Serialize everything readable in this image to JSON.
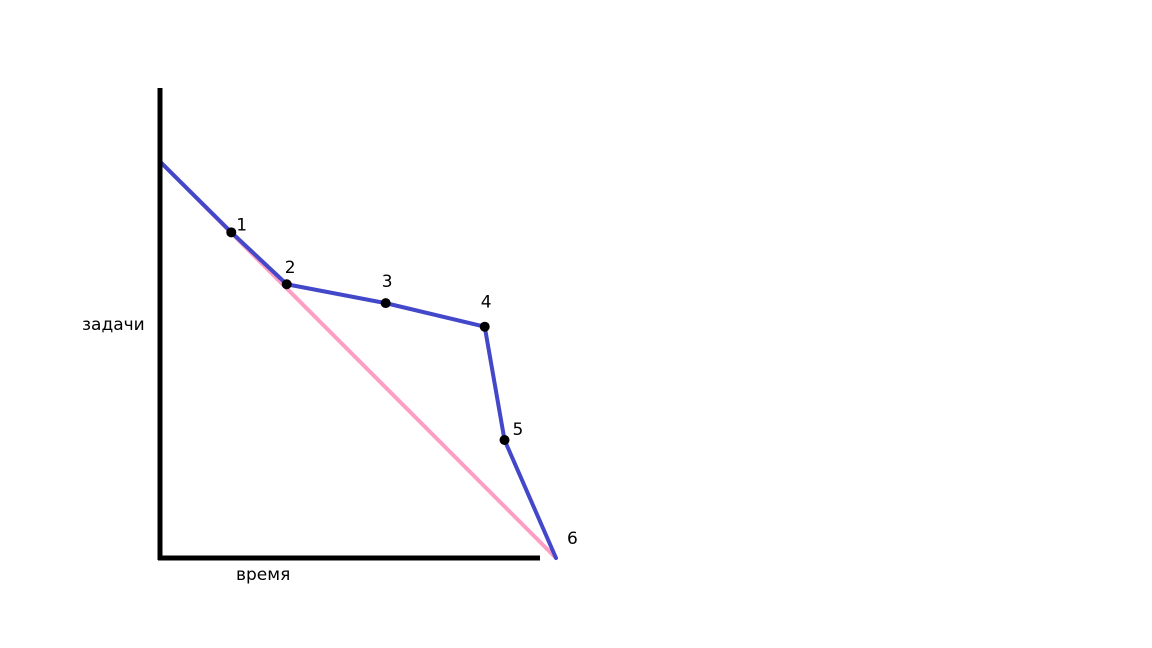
{
  "chart_data": {
    "type": "line",
    "title": "",
    "xlabel": "время",
    "ylabel": "задачи",
    "xlim": [
      0,
      1
    ],
    "ylim": [
      0,
      1
    ],
    "grid": false,
    "legend": "none",
    "series": [
      {
        "color": "#ff9ec4",
        "x": [
          0,
          1
        ],
        "y": [
          0.84,
          0
        ]
      },
      {
        "color": "#4347c9",
        "x": [
          0,
          0.18,
          0.32,
          0.57,
          0.82,
          0.87,
          1.0
        ],
        "y": [
          0.84,
          0.69,
          0.58,
          0.54,
          0.49,
          0.25,
          0
        ]
      }
    ],
    "points": [
      {
        "label": "1",
        "x": 0.18,
        "y": 0.69,
        "marker": true
      },
      {
        "label": "2",
        "x": 0.32,
        "y": 0.58,
        "marker": true
      },
      {
        "label": "3",
        "x": 0.57,
        "y": 0.54,
        "marker": true
      },
      {
        "label": "4",
        "x": 0.82,
        "y": 0.49,
        "marker": true
      },
      {
        "label": "5",
        "x": 0.87,
        "y": 0.25,
        "marker": true
      },
      {
        "label": "6",
        "x": 1.0,
        "y": 0.0,
        "marker": false
      }
    ],
    "axis_color": "#000000",
    "marker_color": "#000000"
  }
}
